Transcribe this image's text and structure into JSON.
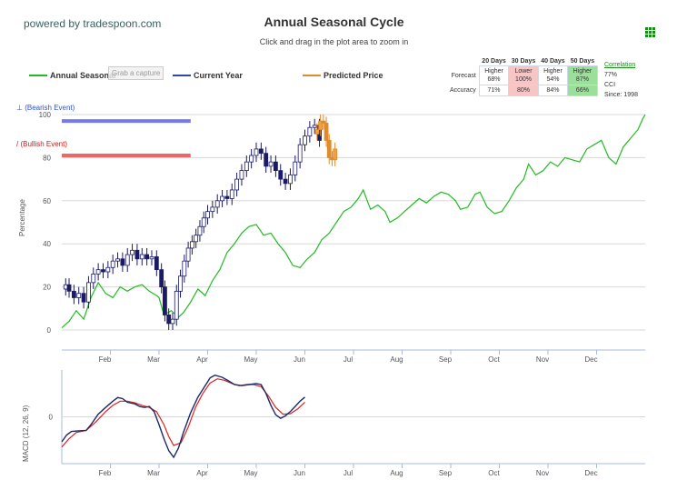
{
  "header": {
    "powered_by": "powered by tradespoon.com",
    "title": "Annual Seasonal Cycle",
    "subtitle": "Click and drag in the plot area to zoom in",
    "menu_icon": "grid-menu-icon"
  },
  "legend": {
    "annual_seasonal": "Annual Seasonal",
    "current_year": "Current Year",
    "predicted_price": "Predicted Price",
    "capture_button": "Grab a capture"
  },
  "stats_table": {
    "columns": [
      "20 Days",
      "30 Days",
      "40 Days",
      "50 Days"
    ],
    "forecast_label": "Forecast",
    "accuracy_label": "Accuracy",
    "forecast": [
      {
        "dir": "Higher",
        "pct": "68%",
        "tone": "none"
      },
      {
        "dir": "Lower",
        "pct": "100%",
        "tone": "red"
      },
      {
        "dir": "Higher",
        "pct": "54%",
        "tone": "none"
      },
      {
        "dir": "Higher",
        "pct": "87%",
        "tone": "green"
      }
    ],
    "accuracy": [
      {
        "pct": "71%",
        "tone": "none"
      },
      {
        "pct": "80%",
        "tone": "red"
      },
      {
        "pct": "84%",
        "tone": "none"
      },
      {
        "pct": "66%",
        "tone": "green"
      }
    ],
    "correlation_label": "Correlation",
    "correlation_value": "77%",
    "cci_label": "CCI",
    "since_label": "Since: 1998"
  },
  "events": {
    "bearish": "⊥ (Bearish Event)",
    "bullish": "/ (Bullish Event)"
  },
  "colors": {
    "seasonal": "#22bb22",
    "current": "#1a1a66",
    "bull_candle": "#ffffff",
    "predicted": "#e08a2a",
    "bear_line": "#7777ee",
    "bull_line": "#ee6666",
    "macd": "#1a2a6a",
    "signal": "#dd2222",
    "grid": "#d8d8d8"
  },
  "chart_data": [
    {
      "type": "line",
      "ylabel": "Percentage",
      "ylim": [
        0,
        100
      ],
      "y_ticks": [
        0,
        20,
        40,
        60,
        80,
        100
      ],
      "x_ticks": [
        "Feb",
        "Mar",
        "Apr",
        "May",
        "Jun",
        "Jul",
        "Aug",
        "Sep",
        "Oct",
        "Nov",
        "Dec"
      ],
      "x_range_months": [
        0,
        12
      ],
      "grid": true,
      "legend_position": "top",
      "series": [
        {
          "name": "Annual Seasonal",
          "kind": "line",
          "points": [
            [
              0.0,
              1
            ],
            [
              0.15,
              4
            ],
            [
              0.3,
              9
            ],
            [
              0.45,
              5
            ],
            [
              0.6,
              15
            ],
            [
              0.75,
              22
            ],
            [
              0.9,
              17
            ],
            [
              1.05,
              15
            ],
            [
              1.2,
              20
            ],
            [
              1.35,
              18
            ],
            [
              1.5,
              20
            ],
            [
              1.65,
              21
            ],
            [
              1.8,
              18
            ],
            [
              1.95,
              16
            ],
            [
              2.0,
              15
            ],
            [
              2.1,
              7
            ],
            [
              2.25,
              9
            ],
            [
              2.4,
              6
            ],
            [
              2.5,
              8
            ],
            [
              2.65,
              13
            ],
            [
              2.8,
              19
            ],
            [
              2.95,
              16
            ],
            [
              3.1,
              23
            ],
            [
              3.25,
              28
            ],
            [
              3.4,
              36
            ],
            [
              3.55,
              40
            ],
            [
              3.7,
              45
            ],
            [
              3.85,
              48
            ],
            [
              4.0,
              49
            ],
            [
              4.15,
              44
            ],
            [
              4.3,
              45
            ],
            [
              4.45,
              40
            ],
            [
              4.6,
              36
            ],
            [
              4.75,
              30
            ],
            [
              4.9,
              29
            ],
            [
              5.05,
              33
            ],
            [
              5.2,
              36
            ],
            [
              5.35,
              42
            ],
            [
              5.5,
              45
            ],
            [
              5.65,
              50
            ],
            [
              5.8,
              55
            ],
            [
              5.95,
              57
            ],
            [
              6.1,
              61
            ],
            [
              6.2,
              65
            ],
            [
              6.35,
              56
            ],
            [
              6.5,
              58
            ],
            [
              6.65,
              55
            ],
            [
              6.75,
              50
            ],
            [
              6.9,
              52
            ],
            [
              7.05,
              55
            ],
            [
              7.2,
              58
            ],
            [
              7.35,
              61
            ],
            [
              7.5,
              59
            ],
            [
              7.65,
              62
            ],
            [
              7.8,
              64
            ],
            [
              7.95,
              63
            ],
            [
              8.1,
              60
            ],
            [
              8.2,
              56
            ],
            [
              8.35,
              57
            ],
            [
              8.5,
              63
            ],
            [
              8.6,
              64
            ],
            [
              8.75,
              57
            ],
            [
              8.9,
              54
            ],
            [
              9.05,
              55
            ],
            [
              9.2,
              60
            ],
            [
              9.35,
              66
            ],
            [
              9.5,
              70
            ],
            [
              9.6,
              77
            ],
            [
              9.75,
              72
            ],
            [
              9.9,
              74
            ],
            [
              10.05,
              78
            ],
            [
              10.2,
              76
            ],
            [
              10.35,
              80
            ],
            [
              10.5,
              79
            ],
            [
              10.65,
              78
            ],
            [
              10.8,
              84
            ],
            [
              10.95,
              86
            ],
            [
              11.1,
              88
            ],
            [
              11.25,
              80
            ],
            [
              11.4,
              77
            ],
            [
              11.55,
              85
            ],
            [
              11.7,
              89
            ],
            [
              11.85,
              93
            ],
            [
              11.95,
              98
            ],
            [
              12.0,
              100
            ]
          ]
        },
        {
          "name": "Current Year",
          "kind": "candlestick",
          "points": [
            [
              0.08,
              21
            ],
            [
              0.15,
              18
            ],
            [
              0.25,
              15
            ],
            [
              0.35,
              17
            ],
            [
              0.45,
              13
            ],
            [
              0.55,
              22
            ],
            [
              0.65,
              26
            ],
            [
              0.75,
              28
            ],
            [
              0.85,
              27
            ],
            [
              0.95,
              29
            ],
            [
              1.05,
              32
            ],
            [
              1.15,
              33
            ],
            [
              1.25,
              30
            ],
            [
              1.35,
              35
            ],
            [
              1.45,
              37
            ],
            [
              1.55,
              33
            ],
            [
              1.65,
              35
            ],
            [
              1.75,
              33
            ],
            [
              1.85,
              34
            ],
            [
              1.95,
              28
            ],
            [
              2.05,
              20
            ],
            [
              2.12,
              7
            ],
            [
              2.2,
              3
            ],
            [
              2.28,
              5
            ],
            [
              2.36,
              18
            ],
            [
              2.44,
              25
            ],
            [
              2.52,
              32
            ],
            [
              2.6,
              38
            ],
            [
              2.68,
              41
            ],
            [
              2.76,
              44
            ],
            [
              2.84,
              48
            ],
            [
              2.92,
              52
            ],
            [
              3.0,
              55
            ],
            [
              3.1,
              57
            ],
            [
              3.2,
              60
            ],
            [
              3.3,
              62
            ],
            [
              3.4,
              61
            ],
            [
              3.5,
              65
            ],
            [
              3.6,
              70
            ],
            [
              3.7,
              74
            ],
            [
              3.8,
              78
            ],
            [
              3.9,
              81
            ],
            [
              4.0,
              84
            ],
            [
              4.1,
              82
            ],
            [
              4.2,
              76
            ],
            [
              4.3,
              78
            ],
            [
              4.4,
              74
            ],
            [
              4.5,
              70
            ],
            [
              4.6,
              68
            ],
            [
              4.7,
              72
            ],
            [
              4.8,
              78
            ],
            [
              4.9,
              86
            ],
            [
              5.0,
              90
            ],
            [
              5.1,
              94
            ],
            [
              5.2,
              95
            ],
            [
              5.3,
              88
            ]
          ],
          "bearish_line_level": 97,
          "bullish_line_level": 81,
          "event_line_range_months": [
            0,
            2.65
          ]
        },
        {
          "name": "Predicted Price",
          "kind": "candlestick",
          "points": [
            [
              5.25,
              93
            ],
            [
              5.32,
              97
            ],
            [
              5.38,
              96
            ],
            [
              5.44,
              88
            ],
            [
              5.5,
              80
            ],
            [
              5.56,
              79
            ],
            [
              5.62,
              84
            ]
          ]
        }
      ]
    },
    {
      "type": "line",
      "ylabel": "MACD (12, 26, 9)",
      "y_ticks": [
        0
      ],
      "ylim": [
        -0.9,
        0.9
      ],
      "x_ticks": [
        "Feb",
        "Mar",
        "Apr",
        "May",
        "Jun",
        "Jul",
        "Aug",
        "Sep",
        "Oct",
        "Nov",
        "Dec"
      ],
      "series": [
        {
          "name": "MACD",
          "points": [
            [
              0.0,
              -0.48
            ],
            [
              0.1,
              -0.35
            ],
            [
              0.2,
              -0.28
            ],
            [
              0.35,
              -0.27
            ],
            [
              0.5,
              -0.26
            ],
            [
              0.6,
              -0.15
            ],
            [
              0.75,
              0.05
            ],
            [
              0.9,
              0.18
            ],
            [
              1.05,
              0.3
            ],
            [
              1.15,
              0.37
            ],
            [
              1.25,
              0.35
            ],
            [
              1.35,
              0.28
            ],
            [
              1.5,
              0.25
            ],
            [
              1.6,
              0.2
            ],
            [
              1.7,
              0.18
            ],
            [
              1.8,
              0.2
            ],
            [
              1.9,
              0.1
            ],
            [
              2.0,
              -0.15
            ],
            [
              2.1,
              -0.42
            ],
            [
              2.2,
              -0.65
            ],
            [
              2.3,
              -0.78
            ],
            [
              2.4,
              -0.6
            ],
            [
              2.5,
              -0.3
            ],
            [
              2.65,
              0.08
            ],
            [
              2.8,
              0.38
            ],
            [
              2.95,
              0.6
            ],
            [
              3.05,
              0.75
            ],
            [
              3.15,
              0.8
            ],
            [
              3.3,
              0.76
            ],
            [
              3.45,
              0.68
            ],
            [
              3.55,
              0.62
            ],
            [
              3.7,
              0.6
            ],
            [
              3.85,
              0.62
            ],
            [
              4.0,
              0.64
            ],
            [
              4.1,
              0.62
            ],
            [
              4.2,
              0.45
            ],
            [
              4.3,
              0.22
            ],
            [
              4.4,
              0.04
            ],
            [
              4.5,
              -0.03
            ],
            [
              4.6,
              0.02
            ],
            [
              4.7,
              0.1
            ],
            [
              4.8,
              0.2
            ],
            [
              4.9,
              0.3
            ],
            [
              5.0,
              0.38
            ]
          ]
        },
        {
          "name": "Signal",
          "points": [
            [
              0.0,
              -0.58
            ],
            [
              0.15,
              -0.42
            ],
            [
              0.3,
              -0.3
            ],
            [
              0.5,
              -0.26
            ],
            [
              0.7,
              -0.1
            ],
            [
              0.9,
              0.1
            ],
            [
              1.05,
              0.22
            ],
            [
              1.2,
              0.3
            ],
            [
              1.35,
              0.3
            ],
            [
              1.5,
              0.27
            ],
            [
              1.65,
              0.22
            ],
            [
              1.8,
              0.18
            ],
            [
              1.95,
              0.1
            ],
            [
              2.1,
              -0.15
            ],
            [
              2.2,
              -0.38
            ],
            [
              2.3,
              -0.55
            ],
            [
              2.45,
              -0.5
            ],
            [
              2.6,
              -0.2
            ],
            [
              2.75,
              0.18
            ],
            [
              2.9,
              0.45
            ],
            [
              3.05,
              0.65
            ],
            [
              3.2,
              0.73
            ],
            [
              3.35,
              0.7
            ],
            [
              3.5,
              0.64
            ],
            [
              3.65,
              0.6
            ],
            [
              3.8,
              0.62
            ],
            [
              3.95,
              0.62
            ],
            [
              4.1,
              0.58
            ],
            [
              4.25,
              0.4
            ],
            [
              4.4,
              0.18
            ],
            [
              4.55,
              0.05
            ],
            [
              4.7,
              0.06
            ],
            [
              4.85,
              0.15
            ],
            [
              5.0,
              0.28
            ]
          ]
        }
      ]
    }
  ]
}
